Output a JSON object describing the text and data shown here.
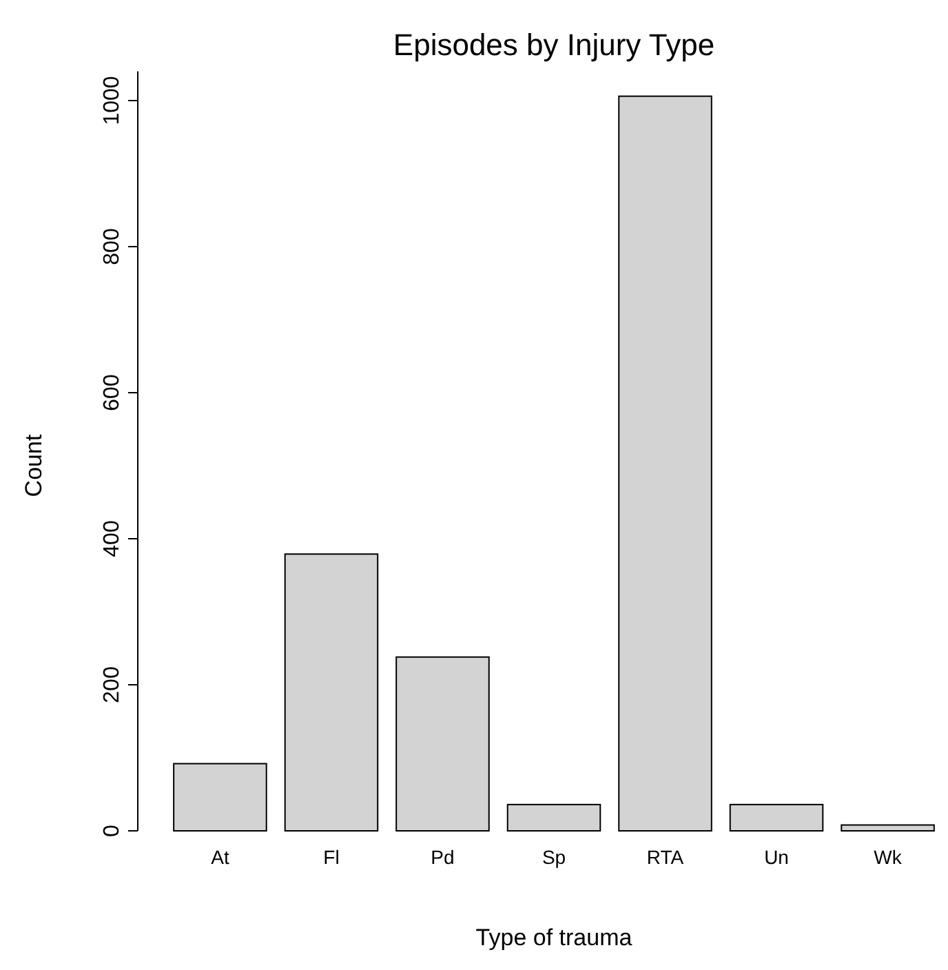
{
  "chart_data": {
    "type": "bar",
    "title": "Episodes by Injury Type",
    "xlabel": "Type of trauma",
    "ylabel": "Count",
    "categories": [
      "At",
      "Fl",
      "Pd",
      "Sp",
      "RTA",
      "Un",
      "Wk"
    ],
    "values": [
      92,
      379,
      238,
      36,
      1006,
      36,
      8
    ],
    "color": "#d3d3d3",
    "ylim": [
      0,
      1040
    ],
    "yticks": [
      0,
      200,
      400,
      600,
      800,
      1000
    ],
    "grid": false
  }
}
